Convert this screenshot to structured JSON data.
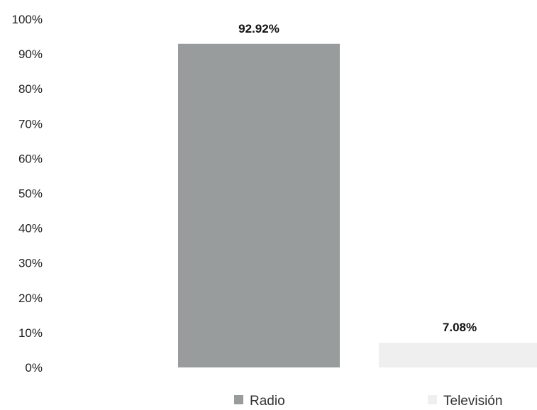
{
  "chart_data": {
    "type": "bar",
    "categories": [
      "Radio",
      "Televisión"
    ],
    "series": [
      {
        "name": "Radio",
        "values": [
          92.92,
          null
        ],
        "color": "#999c9c"
      },
      {
        "name": "Televisión",
        "values": [
          null,
          7.08
        ],
        "color": "#efefef"
      }
    ],
    "data_labels": [
      "92.92%",
      "7.08%"
    ],
    "yticks": [
      "0%",
      "10%",
      "20%",
      "30%",
      "40%",
      "50%",
      "60%",
      "70%",
      "80%",
      "90%",
      "100%"
    ],
    "ylim": [
      0,
      100
    ],
    "grid": false,
    "legend": {
      "position": "bottom",
      "items": [
        "Radio",
        "Televisión"
      ]
    }
  }
}
